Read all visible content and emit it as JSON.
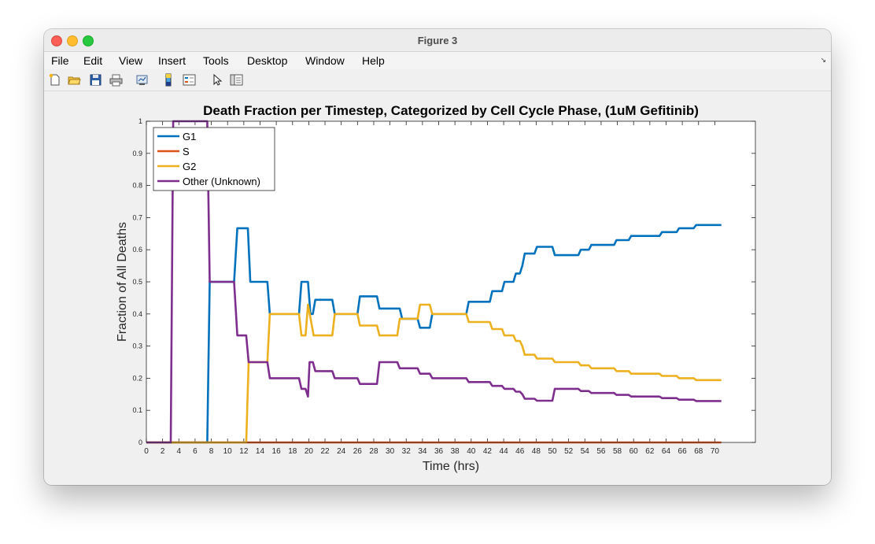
{
  "window": {
    "title": "Figure 3"
  },
  "menu": [
    "File",
    "Edit",
    "View",
    "Insert",
    "Tools",
    "Desktop",
    "Window",
    "Help"
  ],
  "toolbar": [
    "new-figure-icon",
    "open-file-icon",
    "save-icon",
    "print-icon",
    "link-plot-icon",
    "colorbar-icon",
    "legend-icon",
    "edit-plot-icon",
    "property-inspector-icon"
  ],
  "chart_data": {
    "type": "line",
    "title": "Death Fraction per Timestep, Categorized by Cell Cycle Phase, (1uM Gefitinib)",
    "xlabel": "Time (hrs)",
    "ylabel": "Fraction of All Deaths",
    "xlim": [
      0,
      75
    ],
    "ylim": [
      0,
      1
    ],
    "xticks": [
      0,
      2,
      4,
      6,
      8,
      10,
      12,
      14,
      16,
      18,
      20,
      22,
      24,
      26,
      28,
      30,
      32,
      34,
      36,
      38,
      40,
      42,
      44,
      46,
      48,
      50,
      52,
      54,
      56,
      58,
      60,
      62,
      64,
      66,
      68,
      70
    ],
    "yticks": [
      0,
      0.1,
      0.2,
      0.3,
      0.4,
      0.5,
      0.6,
      0.7,
      0.8,
      0.9,
      1
    ],
    "legend_position": "top-left",
    "series": [
      {
        "name": "G1",
        "color": "#0072bd",
        "points": [
          [
            0,
            0
          ],
          [
            7.5,
            0
          ],
          [
            7.8,
            0.5
          ],
          [
            10.8,
            0.5
          ],
          [
            11.2,
            0.667
          ],
          [
            12.5,
            0.667
          ],
          [
            12.8,
            0.5
          ],
          [
            14.9,
            0.5
          ],
          [
            15.2,
            0.4
          ],
          [
            18.8,
            0.4
          ],
          [
            19.1,
            0.5
          ],
          [
            19.9,
            0.5
          ],
          [
            20.2,
            0.4
          ],
          [
            20.5,
            0.4
          ],
          [
            20.8,
            0.444
          ],
          [
            22.9,
            0.444
          ],
          [
            23.2,
            0.4
          ],
          [
            26,
            0.4
          ],
          [
            26.3,
            0.455
          ],
          [
            28.4,
            0.455
          ],
          [
            28.7,
            0.417
          ],
          [
            31.2,
            0.417
          ],
          [
            31.5,
            0.385
          ],
          [
            33.4,
            0.385
          ],
          [
            33.7,
            0.357
          ],
          [
            34.9,
            0.357
          ],
          [
            35.2,
            0.4
          ],
          [
            39.4,
            0.4
          ],
          [
            39.7,
            0.438
          ],
          [
            42.3,
            0.438
          ],
          [
            42.6,
            0.471
          ],
          [
            43.8,
            0.471
          ],
          [
            44.1,
            0.5
          ],
          [
            45.2,
            0.5
          ],
          [
            45.5,
            0.526
          ],
          [
            46,
            0.526
          ],
          [
            46.3,
            0.55
          ],
          [
            46.6,
            0.588
          ],
          [
            47.8,
            0.588
          ],
          [
            48.1,
            0.609
          ],
          [
            50,
            0.609
          ],
          [
            50.3,
            0.583
          ],
          [
            53.2,
            0.583
          ],
          [
            53.5,
            0.6
          ],
          [
            54.5,
            0.6
          ],
          [
            54.8,
            0.615
          ],
          [
            57.6,
            0.615
          ],
          [
            57.9,
            0.63
          ],
          [
            59.4,
            0.63
          ],
          [
            59.7,
            0.643
          ],
          [
            63.2,
            0.643
          ],
          [
            63.5,
            0.655
          ],
          [
            65.3,
            0.655
          ],
          [
            65.6,
            0.667
          ],
          [
            67.4,
            0.667
          ],
          [
            67.7,
            0.677
          ],
          [
            70.8,
            0.677
          ]
        ]
      },
      {
        "name": "S",
        "color": "#d95319",
        "points": [
          [
            0,
            0
          ],
          [
            70.8,
            0
          ]
        ]
      },
      {
        "name": "G2",
        "color": "#edb120",
        "points": [
          [
            0,
            0
          ],
          [
            12.3,
            0
          ],
          [
            12.6,
            0.25
          ],
          [
            14.9,
            0.25
          ],
          [
            15.2,
            0.4
          ],
          [
            18.8,
            0.4
          ],
          [
            19.1,
            0.333
          ],
          [
            19.6,
            0.333
          ],
          [
            19.9,
            0.429
          ],
          [
            20.3,
            0.375
          ],
          [
            20.6,
            0.333
          ],
          [
            22.9,
            0.333
          ],
          [
            23.2,
            0.4
          ],
          [
            26,
            0.4
          ],
          [
            26.3,
            0.364
          ],
          [
            28.4,
            0.364
          ],
          [
            28.7,
            0.333
          ],
          [
            30.9,
            0.333
          ],
          [
            31.2,
            0.385
          ],
          [
            33.4,
            0.385
          ],
          [
            33.7,
            0.429
          ],
          [
            34.9,
            0.429
          ],
          [
            35.2,
            0.4
          ],
          [
            39.4,
            0.4
          ],
          [
            39.7,
            0.375
          ],
          [
            42.3,
            0.375
          ],
          [
            42.6,
            0.353
          ],
          [
            43.8,
            0.353
          ],
          [
            44.1,
            0.333
          ],
          [
            45.2,
            0.333
          ],
          [
            45.5,
            0.316
          ],
          [
            46,
            0.316
          ],
          [
            46.3,
            0.3
          ],
          [
            46.6,
            0.273
          ],
          [
            47.8,
            0.273
          ],
          [
            48.1,
            0.261
          ],
          [
            50,
            0.261
          ],
          [
            50.3,
            0.25
          ],
          [
            53.2,
            0.25
          ],
          [
            53.5,
            0.24
          ],
          [
            54.5,
            0.24
          ],
          [
            54.8,
            0.231
          ],
          [
            57.6,
            0.231
          ],
          [
            57.9,
            0.222
          ],
          [
            59.4,
            0.222
          ],
          [
            59.7,
            0.214
          ],
          [
            63.2,
            0.214
          ],
          [
            63.5,
            0.207
          ],
          [
            65.3,
            0.207
          ],
          [
            65.6,
            0.2
          ],
          [
            67.4,
            0.2
          ],
          [
            67.7,
            0.194
          ],
          [
            70.8,
            0.194
          ]
        ]
      },
      {
        "name": "Other (Unknown)",
        "color": "#7e2f8e",
        "points": [
          [
            0,
            0
          ],
          [
            3,
            0
          ],
          [
            3.3,
            1
          ],
          [
            7.5,
            1
          ],
          [
            7.8,
            0.5
          ],
          [
            10.8,
            0.5
          ],
          [
            11.2,
            0.333
          ],
          [
            12.3,
            0.333
          ],
          [
            12.6,
            0.25
          ],
          [
            14.9,
            0.25
          ],
          [
            15.2,
            0.2
          ],
          [
            18.8,
            0.2
          ],
          [
            19.1,
            0.167
          ],
          [
            19.6,
            0.167
          ],
          [
            19.9,
            0.143
          ],
          [
            20.1,
            0.25
          ],
          [
            20.5,
            0.25
          ],
          [
            20.8,
            0.222
          ],
          [
            22.9,
            0.222
          ],
          [
            23.2,
            0.2
          ],
          [
            26,
            0.2
          ],
          [
            26.3,
            0.182
          ],
          [
            28.4,
            0.182
          ],
          [
            28.7,
            0.25
          ],
          [
            30.9,
            0.25
          ],
          [
            31.2,
            0.231
          ],
          [
            33.4,
            0.231
          ],
          [
            33.7,
            0.214
          ],
          [
            34.9,
            0.214
          ],
          [
            35.2,
            0.2
          ],
          [
            39.4,
            0.2
          ],
          [
            39.7,
            0.188
          ],
          [
            42.3,
            0.188
          ],
          [
            42.6,
            0.176
          ],
          [
            43.8,
            0.176
          ],
          [
            44.1,
            0.167
          ],
          [
            45.2,
            0.167
          ],
          [
            45.5,
            0.158
          ],
          [
            46,
            0.158
          ],
          [
            46.3,
            0.15
          ],
          [
            46.6,
            0.136
          ],
          [
            47.8,
            0.136
          ],
          [
            48.1,
            0.13
          ],
          [
            50,
            0.13
          ],
          [
            50.3,
            0.167
          ],
          [
            53.2,
            0.167
          ],
          [
            53.5,
            0.16
          ],
          [
            54.5,
            0.16
          ],
          [
            54.8,
            0.154
          ],
          [
            57.6,
            0.154
          ],
          [
            57.9,
            0.148
          ],
          [
            59.4,
            0.148
          ],
          [
            59.7,
            0.143
          ],
          [
            63.2,
            0.143
          ],
          [
            63.5,
            0.138
          ],
          [
            65.3,
            0.138
          ],
          [
            65.6,
            0.133
          ],
          [
            67.4,
            0.133
          ],
          [
            67.7,
            0.129
          ],
          [
            70.8,
            0.129
          ]
        ]
      }
    ]
  }
}
